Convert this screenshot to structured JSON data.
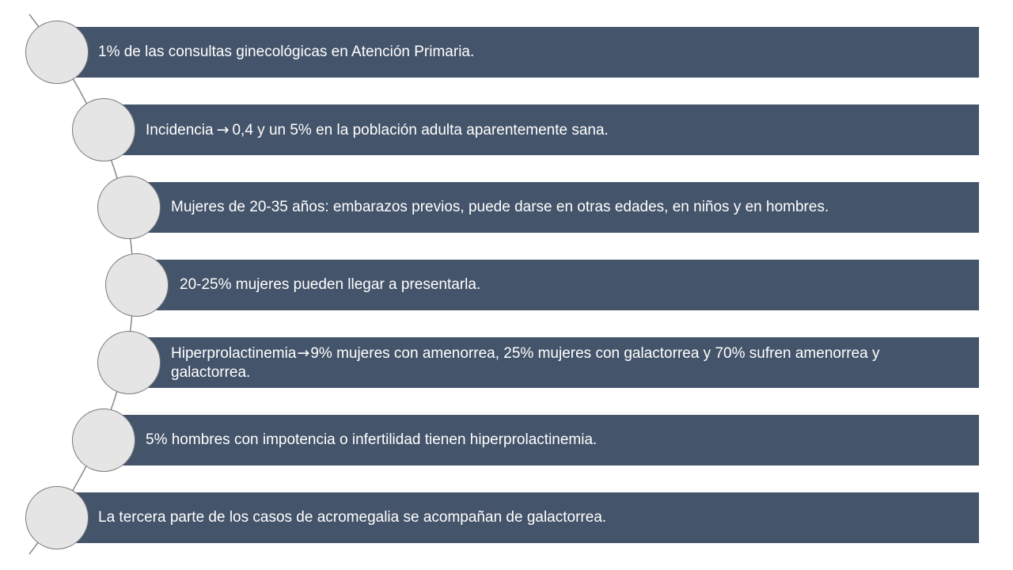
{
  "colors": {
    "bar": "#44546a",
    "circle_fill": "#e5e5e5",
    "circle_stroke": "#7a7a7a",
    "text": "#ffffff",
    "background": "#ffffff"
  },
  "items": [
    {
      "text": "1% de las consultas ginecológicas en Atención Primaria."
    },
    {
      "pre": "Incidencia",
      "arrow": "→",
      "post": "0,4 y un 5% en la población adulta aparentemente sana."
    },
    {
      "text": "Mujeres de 20-35 años: embarazos previos, puede darse en otras edades, en niños y en hombres."
    },
    {
      "text": "20-25% mujeres pueden llegar a presentarla."
    },
    {
      "pre": "Hiperprolactinemia",
      "arrow": "→",
      "post": "9% mujeres con amenorrea, 25% mujeres con galactorrea y 70% sufren amenorrea y galactorrea."
    },
    {
      "text": "5% hombres con impotencia o infertilidad tienen hiperprolactinemia."
    },
    {
      "text": "La tercera parte de los casos de acromegalia se acompañan de galactorrea."
    }
  ]
}
